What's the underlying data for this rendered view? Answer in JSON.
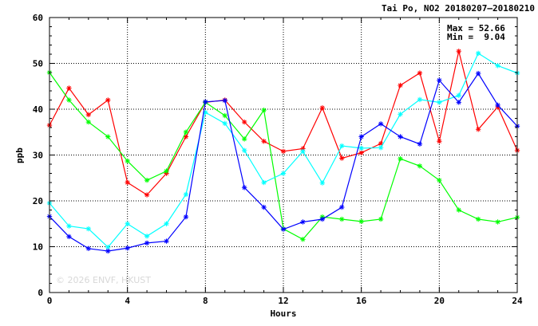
{
  "chart_data": {
    "type": "line",
    "title": "Tai Po, NO2 20180207–20180210",
    "xlabel": "Hours",
    "ylabel": "ppb",
    "xlim": [
      0,
      24
    ],
    "ylim": [
      0,
      60
    ],
    "xticks": [
      0,
      4,
      8,
      12,
      16,
      20,
      24
    ],
    "yticks": [
      0,
      10,
      20,
      30,
      40,
      50,
      60
    ],
    "grid": true,
    "stats": {
      "max": "Max = 52.66",
      "min": "Min =  9.04"
    },
    "watermark": "© 2026 ENVF, HKUST",
    "x": [
      0,
      1,
      2,
      3,
      4,
      5,
      6,
      7,
      8,
      9,
      10,
      11,
      12,
      13,
      14,
      15,
      16,
      17,
      18,
      19,
      20,
      21,
      22,
      23,
      24
    ],
    "series": [
      {
        "color": "#ff0000",
        "values": [
          36.5,
          44.6,
          38.8,
          42.0,
          24.0,
          21.3,
          26.0,
          34.0,
          41.5,
          42.0,
          37.2,
          33.0,
          30.8,
          31.4,
          40.3,
          29.3,
          30.5,
          32.5,
          45.2,
          47.9,
          33.0,
          52.66,
          35.6,
          40.5,
          31.0
        ]
      },
      {
        "color": "#00ff00",
        "values": [
          48.0,
          42.0,
          37.2,
          34.0,
          28.7,
          24.5,
          26.5,
          35.0,
          41.5,
          38.6,
          33.5,
          39.8,
          13.9,
          11.6,
          16.5,
          16.0,
          15.5,
          16.0,
          29.2,
          27.6,
          24.5,
          18.0,
          16.0,
          15.4,
          16.4
        ]
      },
      {
        "color": "#00ffff",
        "values": [
          19.5,
          14.5,
          13.9,
          9.9,
          15.0,
          12.3,
          15.0,
          21.4,
          39.3,
          36.9,
          31.0,
          24.0,
          26.0,
          30.8,
          23.9,
          32.0,
          31.5,
          31.6,
          38.9,
          42.1,
          41.5,
          43.0,
          52.2,
          49.5,
          47.9
        ]
      },
      {
        "color": "#0000ff",
        "values": [
          16.6,
          12.2,
          9.6,
          9.04,
          9.7,
          10.8,
          11.2,
          16.5,
          41.6,
          41.9,
          22.9,
          18.6,
          13.8,
          15.4,
          16.0,
          18.6,
          34.0,
          36.8,
          34.0,
          32.4,
          46.3,
          41.5,
          47.8,
          40.9,
          36.3
        ]
      }
    ]
  }
}
